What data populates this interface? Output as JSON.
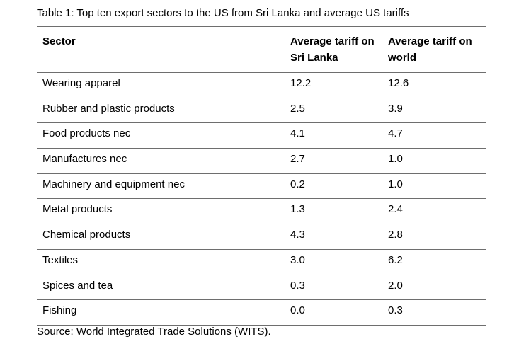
{
  "caption": "Table 1: Top ten export sectors to the US from Sri Lanka and average US tariffs",
  "table": {
    "headers": {
      "sector": "Sector",
      "sri_lanka_line1": "Average tariff on",
      "sri_lanka_line2": "Sri Lanka",
      "world_line1": "Average tariff on",
      "world_line2": "world"
    },
    "rows": [
      {
        "sector": "Wearing apparel",
        "sri_lanka": "12.2",
        "world": "12.6"
      },
      {
        "sector": "Rubber and plastic products",
        "sri_lanka": "2.5",
        "world": "3.9"
      },
      {
        "sector": "Food products nec",
        "sri_lanka": "4.1",
        "world": "4.7"
      },
      {
        "sector": "Manufactures nec",
        "sri_lanka": "2.7",
        "world": "1.0"
      },
      {
        "sector": "Machinery and equipment nec",
        "sri_lanka": "0.2",
        "world": "1.0"
      },
      {
        "sector": "Metal products",
        "sri_lanka": "1.3",
        "world": "2.4"
      },
      {
        "sector": "Chemical products",
        "sri_lanka": "4.3",
        "world": "2.8"
      },
      {
        "sector": "Textiles",
        "sri_lanka": "3.0",
        "world": "6.2"
      },
      {
        "sector": "Spices and tea",
        "sri_lanka": "0.3",
        "world": "2.0"
      },
      {
        "sector": "Fishing",
        "sri_lanka": "0.0",
        "world": "0.3"
      }
    ]
  },
  "source": "Source: World Integrated Trade Solutions (WITS)."
}
